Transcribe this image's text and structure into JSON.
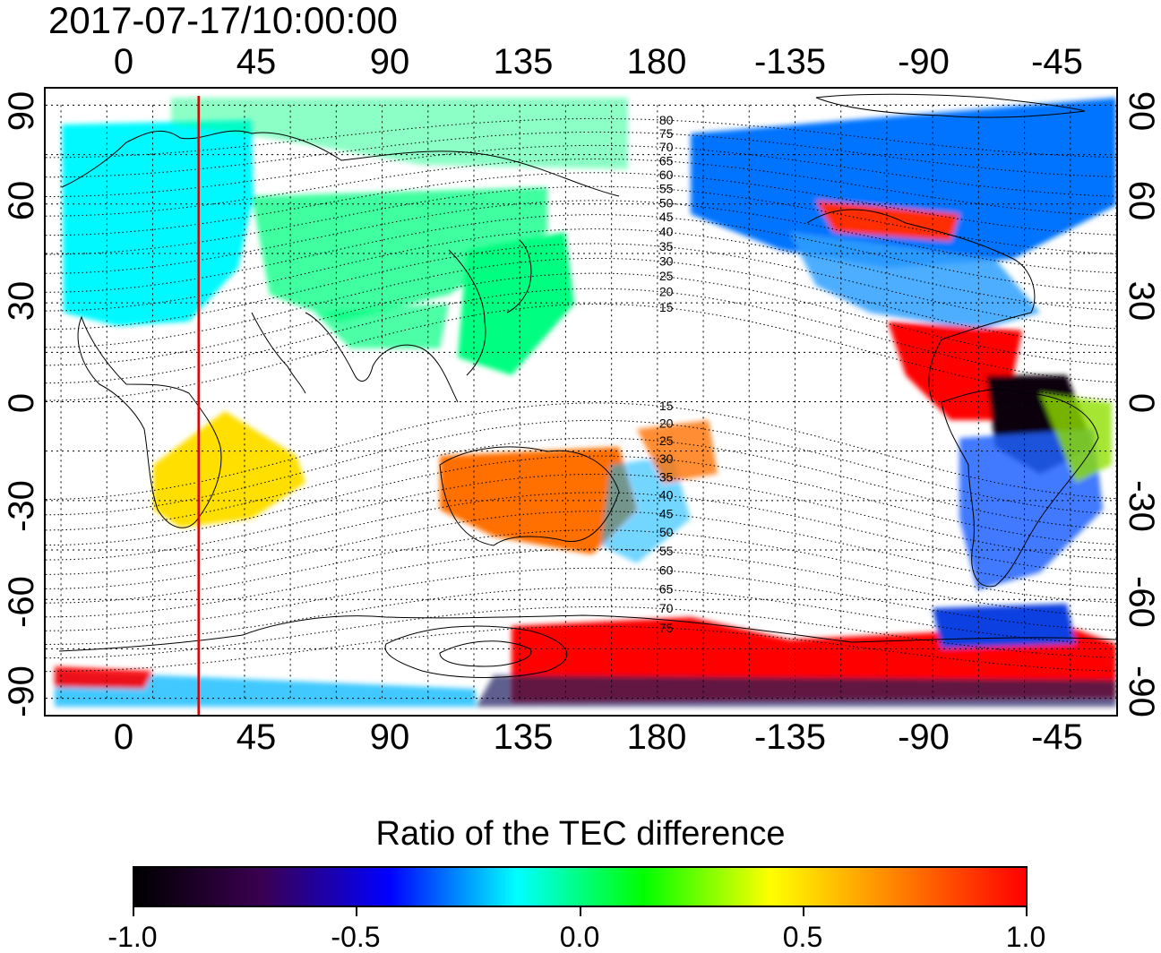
{
  "timestamp": "2017-07-17/10:00:00",
  "axes": {
    "lon_ticks": [
      "0",
      "45",
      "90",
      "135",
      "180",
      "-135",
      "-90",
      "-45"
    ],
    "lat_ticks_left": [
      "90",
      "60",
      "30",
      "0",
      "-30",
      "-60",
      "-90"
    ],
    "lat_ticks_right": [
      "90",
      "60",
      "30",
      "0",
      "-30",
      "-60",
      "-90"
    ],
    "lon_range": [
      -20,
      330
    ],
    "lat_range": [
      -95,
      95
    ],
    "grid": "dotted, 15 degree spacing"
  },
  "marker_line": {
    "longitude": 30,
    "color": "#e00000"
  },
  "contour_labels_north": [
    "80",
    "75",
    "70",
    "65",
    "60",
    "55",
    "50",
    "45",
    "40",
    "35",
    "30",
    "25",
    "20",
    "15"
  ],
  "contour_labels_south": [
    "15",
    "20",
    "25",
    "30",
    "35",
    "40",
    "45",
    "50",
    "55",
    "60",
    "65",
    "70",
    "75"
  ],
  "colorbar": {
    "title": "Ratio of the TEC difference",
    "min": -1.0,
    "max": 1.0,
    "tick_labels": [
      "-1.0",
      "-0.5",
      "0.0",
      "0.5",
      "1.0"
    ],
    "stops": [
      "#000000",
      "#3a0050",
      "#0000ff",
      "#00ffff",
      "#00ff00",
      "#ffff00",
      "#ff8000",
      "#ff0000"
    ]
  },
  "regions": [
    {
      "name": "europe",
      "value": -0.15
    },
    {
      "name": "north-asia",
      "value": 0.0
    },
    {
      "name": "east-asia",
      "value": 0.0
    },
    {
      "name": "australia",
      "value": 0.75
    },
    {
      "name": "southern-africa",
      "value": 0.5
    },
    {
      "name": "north-america-north",
      "value": -0.3
    },
    {
      "name": "north-america-band",
      "value": 0.9
    },
    {
      "name": "central-america",
      "value": 1.0
    },
    {
      "name": "south-america-east",
      "value": -0.95
    },
    {
      "name": "antarctica-pacific",
      "value": 1.0
    }
  ]
}
